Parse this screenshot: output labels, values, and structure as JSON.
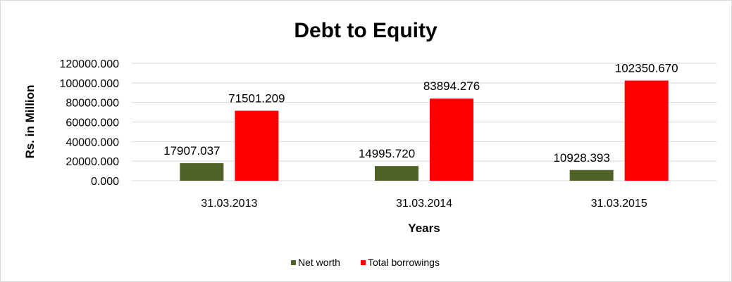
{
  "chart_data": {
    "type": "bar",
    "title": "Debt to Equity",
    "xlabel": "Years",
    "ylabel": "Rs. in Million",
    "categories": [
      "31.03.2013",
      "31.03.2014",
      "31.03.2015"
    ],
    "series": [
      {
        "name": "Net worth",
        "color": "#4f6228",
        "values": [
          17907.037,
          14995.72,
          10928.393
        ],
        "labels": [
          "17907.037",
          "14995.720",
          "10928.393"
        ]
      },
      {
        "name": "Total borrowings",
        "color": "#ff0000",
        "values": [
          71501.209,
          83894.276,
          102350.67
        ],
        "labels": [
          "71501.209",
          "83894.276",
          "102350.670"
        ]
      }
    ],
    "ylim": [
      0,
      120000
    ],
    "yticks": [
      "0.000",
      "20000.000",
      "40000.000",
      "60000.000",
      "80000.000",
      "100000.000",
      "120000.000"
    ],
    "grid": true,
    "legend_position": "bottom"
  }
}
